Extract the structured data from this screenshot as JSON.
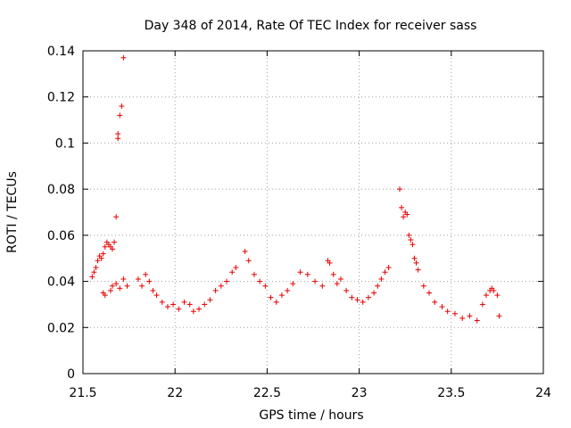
{
  "chart_data": {
    "type": "scatter",
    "title": "Day 348 of 2014, Rate Of TEC Index for receiver sass",
    "xlabel": "GPS time / hours",
    "ylabel": "ROTI / TECUs",
    "xlim": [
      21.5,
      24
    ],
    "ylim": [
      0,
      0.14
    ],
    "x_ticks": [
      "21.5",
      "22",
      "22.5",
      "23",
      "23.5",
      "24"
    ],
    "y_ticks": [
      "0",
      "0.02",
      "0.04",
      "0.06",
      "0.08",
      "0.1",
      "0.12",
      "0.14"
    ],
    "grid": true,
    "marker": "+",
    "series": [
      {
        "name": "ROTI",
        "color": "#e60000",
        "points": [
          [
            21.72,
            0.137
          ],
          [
            21.71,
            0.116
          ],
          [
            21.7,
            0.112
          ],
          [
            21.69,
            0.104
          ],
          [
            21.69,
            0.102
          ],
          [
            21.68,
            0.068
          ],
          [
            21.55,
            0.042
          ],
          [
            21.56,
            0.044
          ],
          [
            21.57,
            0.046
          ],
          [
            21.58,
            0.049
          ],
          [
            21.59,
            0.051
          ],
          [
            21.6,
            0.05
          ],
          [
            21.61,
            0.052
          ],
          [
            21.62,
            0.055
          ],
          [
            21.63,
            0.057
          ],
          [
            21.64,
            0.056
          ],
          [
            21.65,
            0.055
          ],
          [
            21.66,
            0.054
          ],
          [
            21.67,
            0.057
          ],
          [
            21.61,
            0.035
          ],
          [
            21.62,
            0.034
          ],
          [
            21.65,
            0.036
          ],
          [
            21.66,
            0.038
          ],
          [
            21.68,
            0.039
          ],
          [
            21.7,
            0.037
          ],
          [
            21.72,
            0.041
          ],
          [
            21.74,
            0.038
          ],
          [
            21.8,
            0.041
          ],
          [
            21.82,
            0.038
          ],
          [
            21.84,
            0.043
          ],
          [
            21.86,
            0.04
          ],
          [
            21.88,
            0.036
          ],
          [
            21.9,
            0.034
          ],
          [
            21.93,
            0.031
          ],
          [
            21.96,
            0.029
          ],
          [
            21.99,
            0.03
          ],
          [
            22.02,
            0.028
          ],
          [
            22.05,
            0.031
          ],
          [
            22.08,
            0.03
          ],
          [
            22.1,
            0.027
          ],
          [
            22.13,
            0.028
          ],
          [
            22.16,
            0.03
          ],
          [
            22.19,
            0.032
          ],
          [
            22.22,
            0.036
          ],
          [
            22.25,
            0.038
          ],
          [
            22.28,
            0.04
          ],
          [
            22.31,
            0.044
          ],
          [
            22.33,
            0.046
          ],
          [
            22.38,
            0.053
          ],
          [
            22.4,
            0.049
          ],
          [
            22.43,
            0.043
          ],
          [
            22.46,
            0.04
          ],
          [
            22.49,
            0.038
          ],
          [
            22.52,
            0.033
          ],
          [
            22.55,
            0.031
          ],
          [
            22.58,
            0.034
          ],
          [
            22.61,
            0.036
          ],
          [
            22.64,
            0.039
          ],
          [
            22.68,
            0.044
          ],
          [
            22.72,
            0.043
          ],
          [
            22.76,
            0.04
          ],
          [
            22.8,
            0.038
          ],
          [
            22.83,
            0.049
          ],
          [
            22.84,
            0.048
          ],
          [
            22.86,
            0.043
          ],
          [
            22.88,
            0.039
          ],
          [
            22.9,
            0.041
          ],
          [
            22.93,
            0.036
          ],
          [
            22.96,
            0.033
          ],
          [
            22.99,
            0.032
          ],
          [
            23.02,
            0.031
          ],
          [
            23.05,
            0.033
          ],
          [
            23.08,
            0.035
          ],
          [
            23.1,
            0.038
          ],
          [
            23.12,
            0.041
          ],
          [
            23.14,
            0.044
          ],
          [
            23.16,
            0.046
          ],
          [
            23.22,
            0.08
          ],
          [
            23.23,
            0.072
          ],
          [
            23.24,
            0.068
          ],
          [
            23.25,
            0.07
          ],
          [
            23.26,
            0.069
          ],
          [
            23.27,
            0.06
          ],
          [
            23.28,
            0.058
          ],
          [
            23.29,
            0.056
          ],
          [
            23.3,
            0.05
          ],
          [
            23.31,
            0.048
          ],
          [
            23.32,
            0.045
          ],
          [
            23.35,
            0.038
          ],
          [
            23.38,
            0.035
          ],
          [
            23.41,
            0.031
          ],
          [
            23.45,
            0.029
          ],
          [
            23.48,
            0.027
          ],
          [
            23.52,
            0.026
          ],
          [
            23.56,
            0.024
          ],
          [
            23.6,
            0.025
          ],
          [
            23.64,
            0.023
          ],
          [
            23.67,
            0.03
          ],
          [
            23.69,
            0.034
          ],
          [
            23.71,
            0.036
          ],
          [
            23.72,
            0.037
          ],
          [
            23.73,
            0.036
          ],
          [
            23.75,
            0.034
          ],
          [
            23.76,
            0.025
          ]
        ]
      }
    ]
  }
}
